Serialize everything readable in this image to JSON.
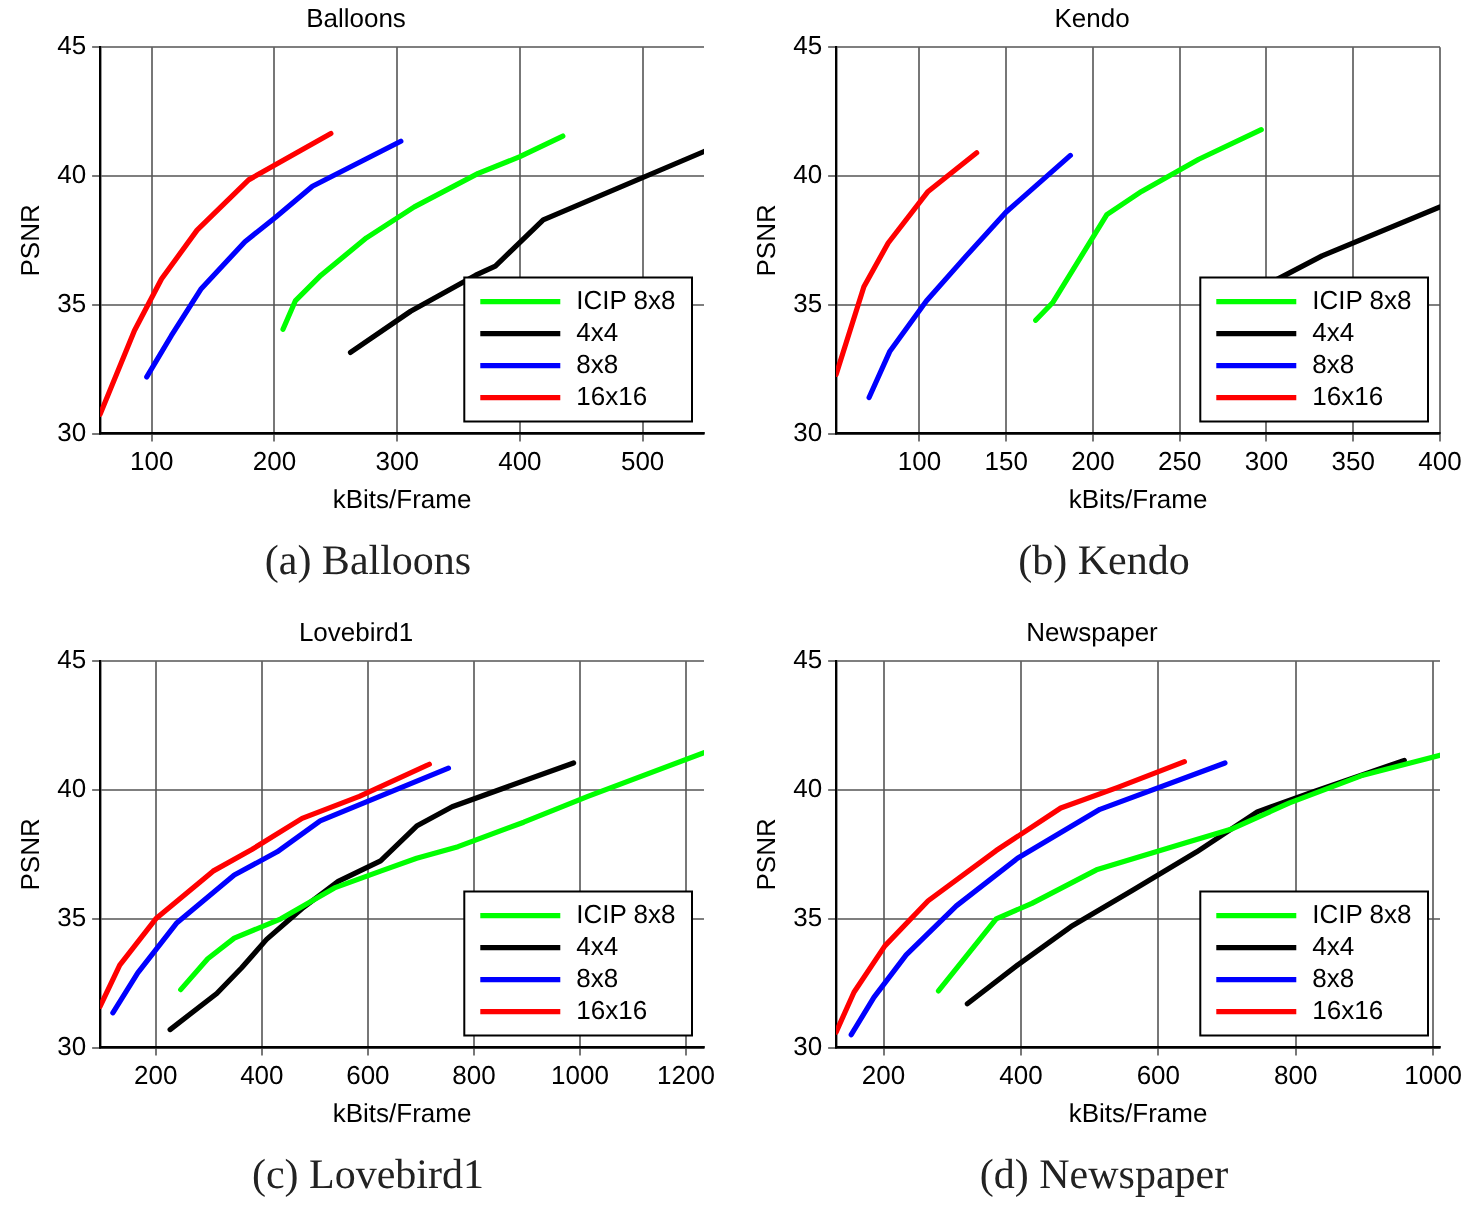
{
  "chart_data": [
    {
      "type": "line",
      "title": "Balloons",
      "xlabel": "kBits/Frame",
      "ylabel": "PSNR",
      "annotations": [
        "(a) Balloons"
      ],
      "xlim": [
        58,
        550
      ],
      "xticks": [
        100,
        200,
        300,
        400,
        500
      ],
      "ylim": [
        30,
        45
      ],
      "yticks": [
        30,
        35,
        40,
        45
      ],
      "grid": true,
      "legend": "bottom right",
      "marker": "none",
      "line_style": "solid",
      "series": [
        {
          "name": "ICIP 8x8",
          "color": "#00ff00",
          "x": [
            207,
            217,
            238,
            275,
            314,
            366,
            400,
            435
          ],
          "values": [
            34.05,
            35.15,
            36.15,
            37.6,
            38.8,
            40.1,
            40.75,
            41.55
          ]
        },
        {
          "name": "4x4",
          "color": "#000000",
          "x": [
            262,
            311,
            364,
            380,
            419,
            550
          ],
          "values": [
            33.15,
            34.75,
            36.15,
            36.5,
            38.3,
            40.95
          ]
        },
        {
          "name": "8x8",
          "color": "#0000ff",
          "x": [
            96,
            116,
            140,
            176,
            201,
            231,
            303
          ],
          "values": [
            32.2,
            33.8,
            35.6,
            37.45,
            38.4,
            39.6,
            41.35
          ]
        },
        {
          "name": "16x16",
          "color": "#ff0000",
          "x": [
            58,
            86,
            108,
            137,
            179,
            246
          ],
          "values": [
            30.75,
            34.0,
            36.0,
            37.9,
            39.85,
            41.65
          ]
        }
      ]
    },
    {
      "type": "line",
      "title": "Kendo",
      "xlabel": "kBits/Frame",
      "ylabel": "PSNR",
      "annotations": [
        "(b) Kendo"
      ],
      "xlim": [
        52,
        400
      ],
      "xticks": [
        100,
        150,
        200,
        250,
        300,
        350,
        400
      ],
      "ylim": [
        30,
        45
      ],
      "yticks": [
        30,
        35,
        40,
        45
      ],
      "grid": true,
      "legend": "bottom right",
      "marker": "none",
      "line_style": "solid",
      "series": [
        {
          "name": "ICIP 8x8",
          "color": "#00ff00",
          "x": [
            167,
            177,
            208,
            228,
            261,
            297
          ],
          "values": [
            34.4,
            35.1,
            38.5,
            39.4,
            40.65,
            41.8
          ]
        },
        {
          "name": "4x4",
          "color": "#000000",
          "x": [
            305,
            332,
            400
          ],
          "values": [
            35.95,
            36.9,
            38.8
          ]
        },
        {
          "name": "8x8",
          "color": "#0000ff",
          "x": [
            71,
            83,
            104,
            127,
            150,
            187
          ],
          "values": [
            31.4,
            33.2,
            35.15,
            36.9,
            38.6,
            40.8
          ]
        },
        {
          "name": "16x16",
          "color": "#ff0000",
          "x": [
            52,
            68,
            82,
            105,
            133
          ],
          "values": [
            32.3,
            35.7,
            37.4,
            39.4,
            40.9
          ]
        }
      ]
    },
    {
      "type": "line",
      "title": "Lovebird1",
      "xlabel": "kBits/Frame",
      "ylabel": "PSNR",
      "annotations": [
        "(c) Lovebird1"
      ],
      "xlim": [
        95,
        1234
      ],
      "xticks": [
        200,
        400,
        600,
        800,
        1000,
        1200
      ],
      "ylim": [
        30,
        45
      ],
      "yticks": [
        30,
        35,
        40,
        45
      ],
      "grid": true,
      "legend": "bottom right",
      "marker": "none",
      "line_style": "solid",
      "series": [
        {
          "name": "ICIP 8x8",
          "color": "#00ff00",
          "x": [
            247,
            298,
            348,
            436,
            537,
            624,
            692,
            770,
            894,
            1015,
            1234
          ],
          "values": [
            32.25,
            33.45,
            34.25,
            35.0,
            36.2,
            36.85,
            37.35,
            37.8,
            38.75,
            39.75,
            41.45
          ]
        },
        {
          "name": "4x4",
          "color": "#000000",
          "x": [
            227,
            315,
            362,
            409,
            476,
            544,
            624,
            692,
            759,
            988
          ],
          "values": [
            30.7,
            32.1,
            33.1,
            34.2,
            35.4,
            36.45,
            37.25,
            38.6,
            39.35,
            41.05
          ]
        },
        {
          "name": "8x8",
          "color": "#0000ff",
          "x": [
            119,
            166,
            240,
            348,
            429,
            510,
            752
          ],
          "values": [
            31.35,
            32.9,
            34.85,
            36.7,
            37.6,
            38.8,
            40.85
          ]
        },
        {
          "name": "16x16",
          "color": "#ff0000",
          "x": [
            95,
            132,
            200,
            308,
            382,
            476,
            584,
            716
          ],
          "values": [
            31.6,
            33.2,
            35.0,
            36.85,
            37.7,
            38.9,
            39.75,
            41.0
          ]
        }
      ]
    },
    {
      "type": "line",
      "title": "Newspaper",
      "xlabel": "kBits/Frame",
      "ylabel": "PSNR",
      "annotations": [
        "(d) Newspaper"
      ],
      "xlim": [
        131,
        1010
      ],
      "xticks": [
        200,
        400,
        600,
        800,
        1000
      ],
      "ylim": [
        30,
        45
      ],
      "yticks": [
        30,
        35,
        40,
        45
      ],
      "grid": true,
      "legend": "bottom right",
      "marker": "none",
      "line_style": "solid",
      "series": [
        {
          "name": "ICIP 8x8",
          "color": "#00ff00",
          "x": [
            280,
            364,
            416,
            510,
            640,
            708,
            791,
            895,
            1010
          ],
          "values": [
            32.2,
            35.0,
            35.6,
            36.9,
            37.95,
            38.5,
            39.5,
            40.55,
            41.35
          ]
        },
        {
          "name": "4x4",
          "color": "#000000",
          "x": [
            322,
            395,
            473,
            562,
            656,
            744,
            828,
            958
          ],
          "values": [
            31.7,
            33.2,
            34.7,
            36.1,
            37.6,
            39.15,
            39.95,
            41.15
          ]
        },
        {
          "name": "8x8",
          "color": "#0000ff",
          "x": [
            153,
            186,
            233,
            306,
            395,
            515,
            697
          ],
          "values": [
            30.5,
            31.95,
            33.6,
            35.5,
            37.35,
            39.25,
            41.05
          ]
        },
        {
          "name": "16x16",
          "color": "#ff0000",
          "x": [
            131,
            157,
            202,
            265,
            364,
            458,
            541,
            638
          ],
          "values": [
            30.6,
            32.15,
            33.95,
            35.7,
            37.65,
            39.3,
            40.1,
            41.1
          ]
        }
      ]
    }
  ]
}
